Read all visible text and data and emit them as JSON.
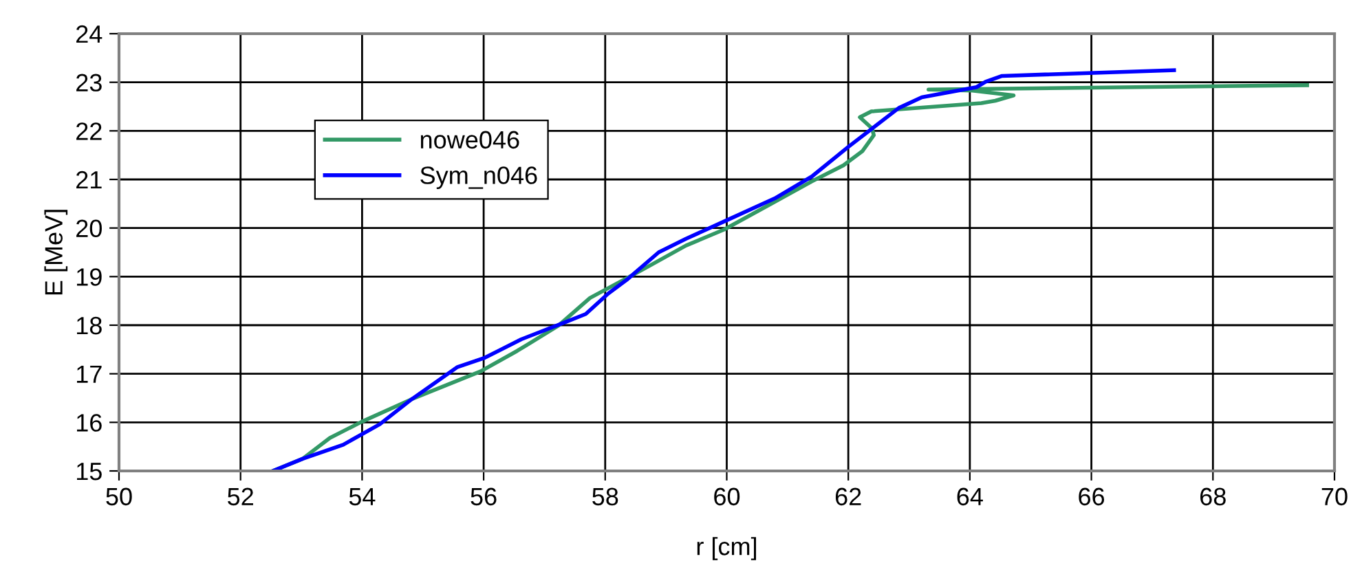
{
  "chart_data": {
    "type": "line",
    "xlabel": "r [cm]",
    "ylabel": "E [MeV]",
    "xlim": [
      50,
      70
    ],
    "xticks": [
      50,
      52,
      54,
      56,
      58,
      60,
      62,
      64,
      66,
      68,
      70
    ],
    "ylim": [
      15,
      24
    ],
    "yticks": [
      15,
      16,
      17,
      18,
      19,
      20,
      21,
      22,
      23,
      24
    ],
    "grid": true,
    "legend": "top left",
    "marker": "none",
    "line_style": "solid",
    "series": [
      {
        "name": "nowe046",
        "color": "#339966",
        "x": [
          52.53,
          53.02,
          53.47,
          53.99,
          54.82,
          55.95,
          56.55,
          57.23,
          57.75,
          58.58,
          59.33,
          59.96,
          60.79,
          61.4,
          61.92,
          62.23,
          62.42,
          62.39,
          62.19,
          62.38,
          64.19,
          64.42,
          64.72,
          64.04,
          63.32,
          69.55
        ],
        "values": [
          15,
          15.25,
          15.68,
          16.01,
          16.48,
          17.05,
          17.47,
          17.99,
          18.56,
          19.12,
          19.64,
          19.97,
          20.54,
          20.96,
          21.29,
          21.58,
          21.91,
          22.05,
          22.28,
          22.4,
          22.57,
          22.62,
          22.73,
          22.83,
          22.85,
          22.94
        ]
      },
      {
        "name": "Sym_n046",
        "color": "#0000ff",
        "x": [
          52.53,
          53.02,
          53.69,
          54.29,
          54.82,
          55.57,
          56.02,
          56.62,
          57.3,
          57.68,
          58.05,
          58.35,
          58.88,
          59.33,
          60.0,
          60.79,
          61.4,
          62.0,
          62.83,
          63.21,
          64.11,
          64.26,
          64.53,
          67.36
        ],
        "values": [
          15,
          15.25,
          15.54,
          15.96,
          16.48,
          17.14,
          17.33,
          17.71,
          18.04,
          18.23,
          18.65,
          18.93,
          19.5,
          19.78,
          20.16,
          20.61,
          21.06,
          21.67,
          22.47,
          22.69,
          22.9,
          23.01,
          23.13,
          23.25
        ]
      }
    ]
  }
}
